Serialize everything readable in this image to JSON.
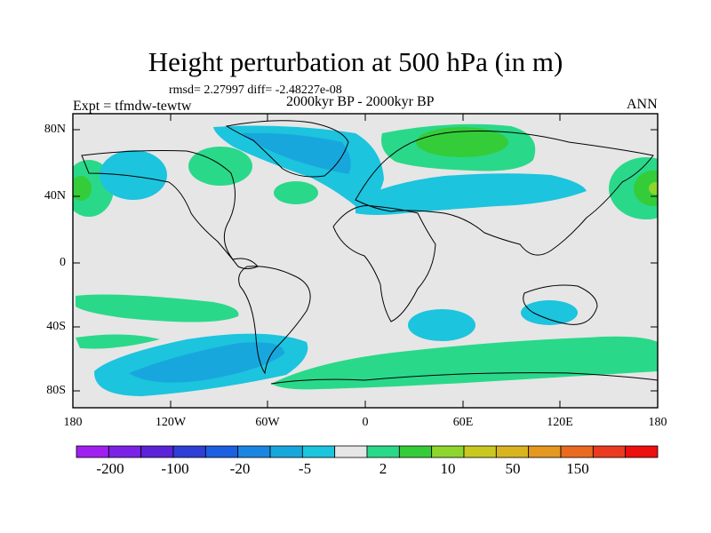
{
  "title": "Height perturbation at 500 hPa (in m)",
  "stats": "rmsd= 2.27997 diff= -2.48227e-08",
  "period": "2000kyr BP - 2000kyr BP",
  "expt": "Expt = tfmdw-tewtw",
  "season": "ANN",
  "y_ticks": [
    "80N",
    "40N",
    "0",
    "40S",
    "80S"
  ],
  "x_ticks": [
    "180",
    "120W",
    "60W",
    "0",
    "60E",
    "120E",
    "180"
  ],
  "colorbar": {
    "colors": [
      "#a020f0",
      "#7b22e6",
      "#5a23d8",
      "#2e3fd6",
      "#1c5fe0",
      "#1a86e2",
      "#18a7dd",
      "#1cc4de",
      "#e6e6e6",
      "#2ad88a",
      "#35cc3a",
      "#8ed62d",
      "#c8c820",
      "#d8b420",
      "#e49820",
      "#ea6a1f",
      "#ea3a1f",
      "#ee0f0f"
    ],
    "labels": [
      "-200",
      "-100",
      "-20",
      "-5",
      "2",
      "10",
      "50",
      "150"
    ]
  },
  "map": {
    "background": "#e6e6e6",
    "positive_light": "#2ad88a",
    "positive_mid": "#35cc3a",
    "positive_strong": "#8ed62d",
    "negative_light": "#1cc4de",
    "negative_mid": "#18a7dd",
    "negative_strong": "#1a86e2"
  }
}
